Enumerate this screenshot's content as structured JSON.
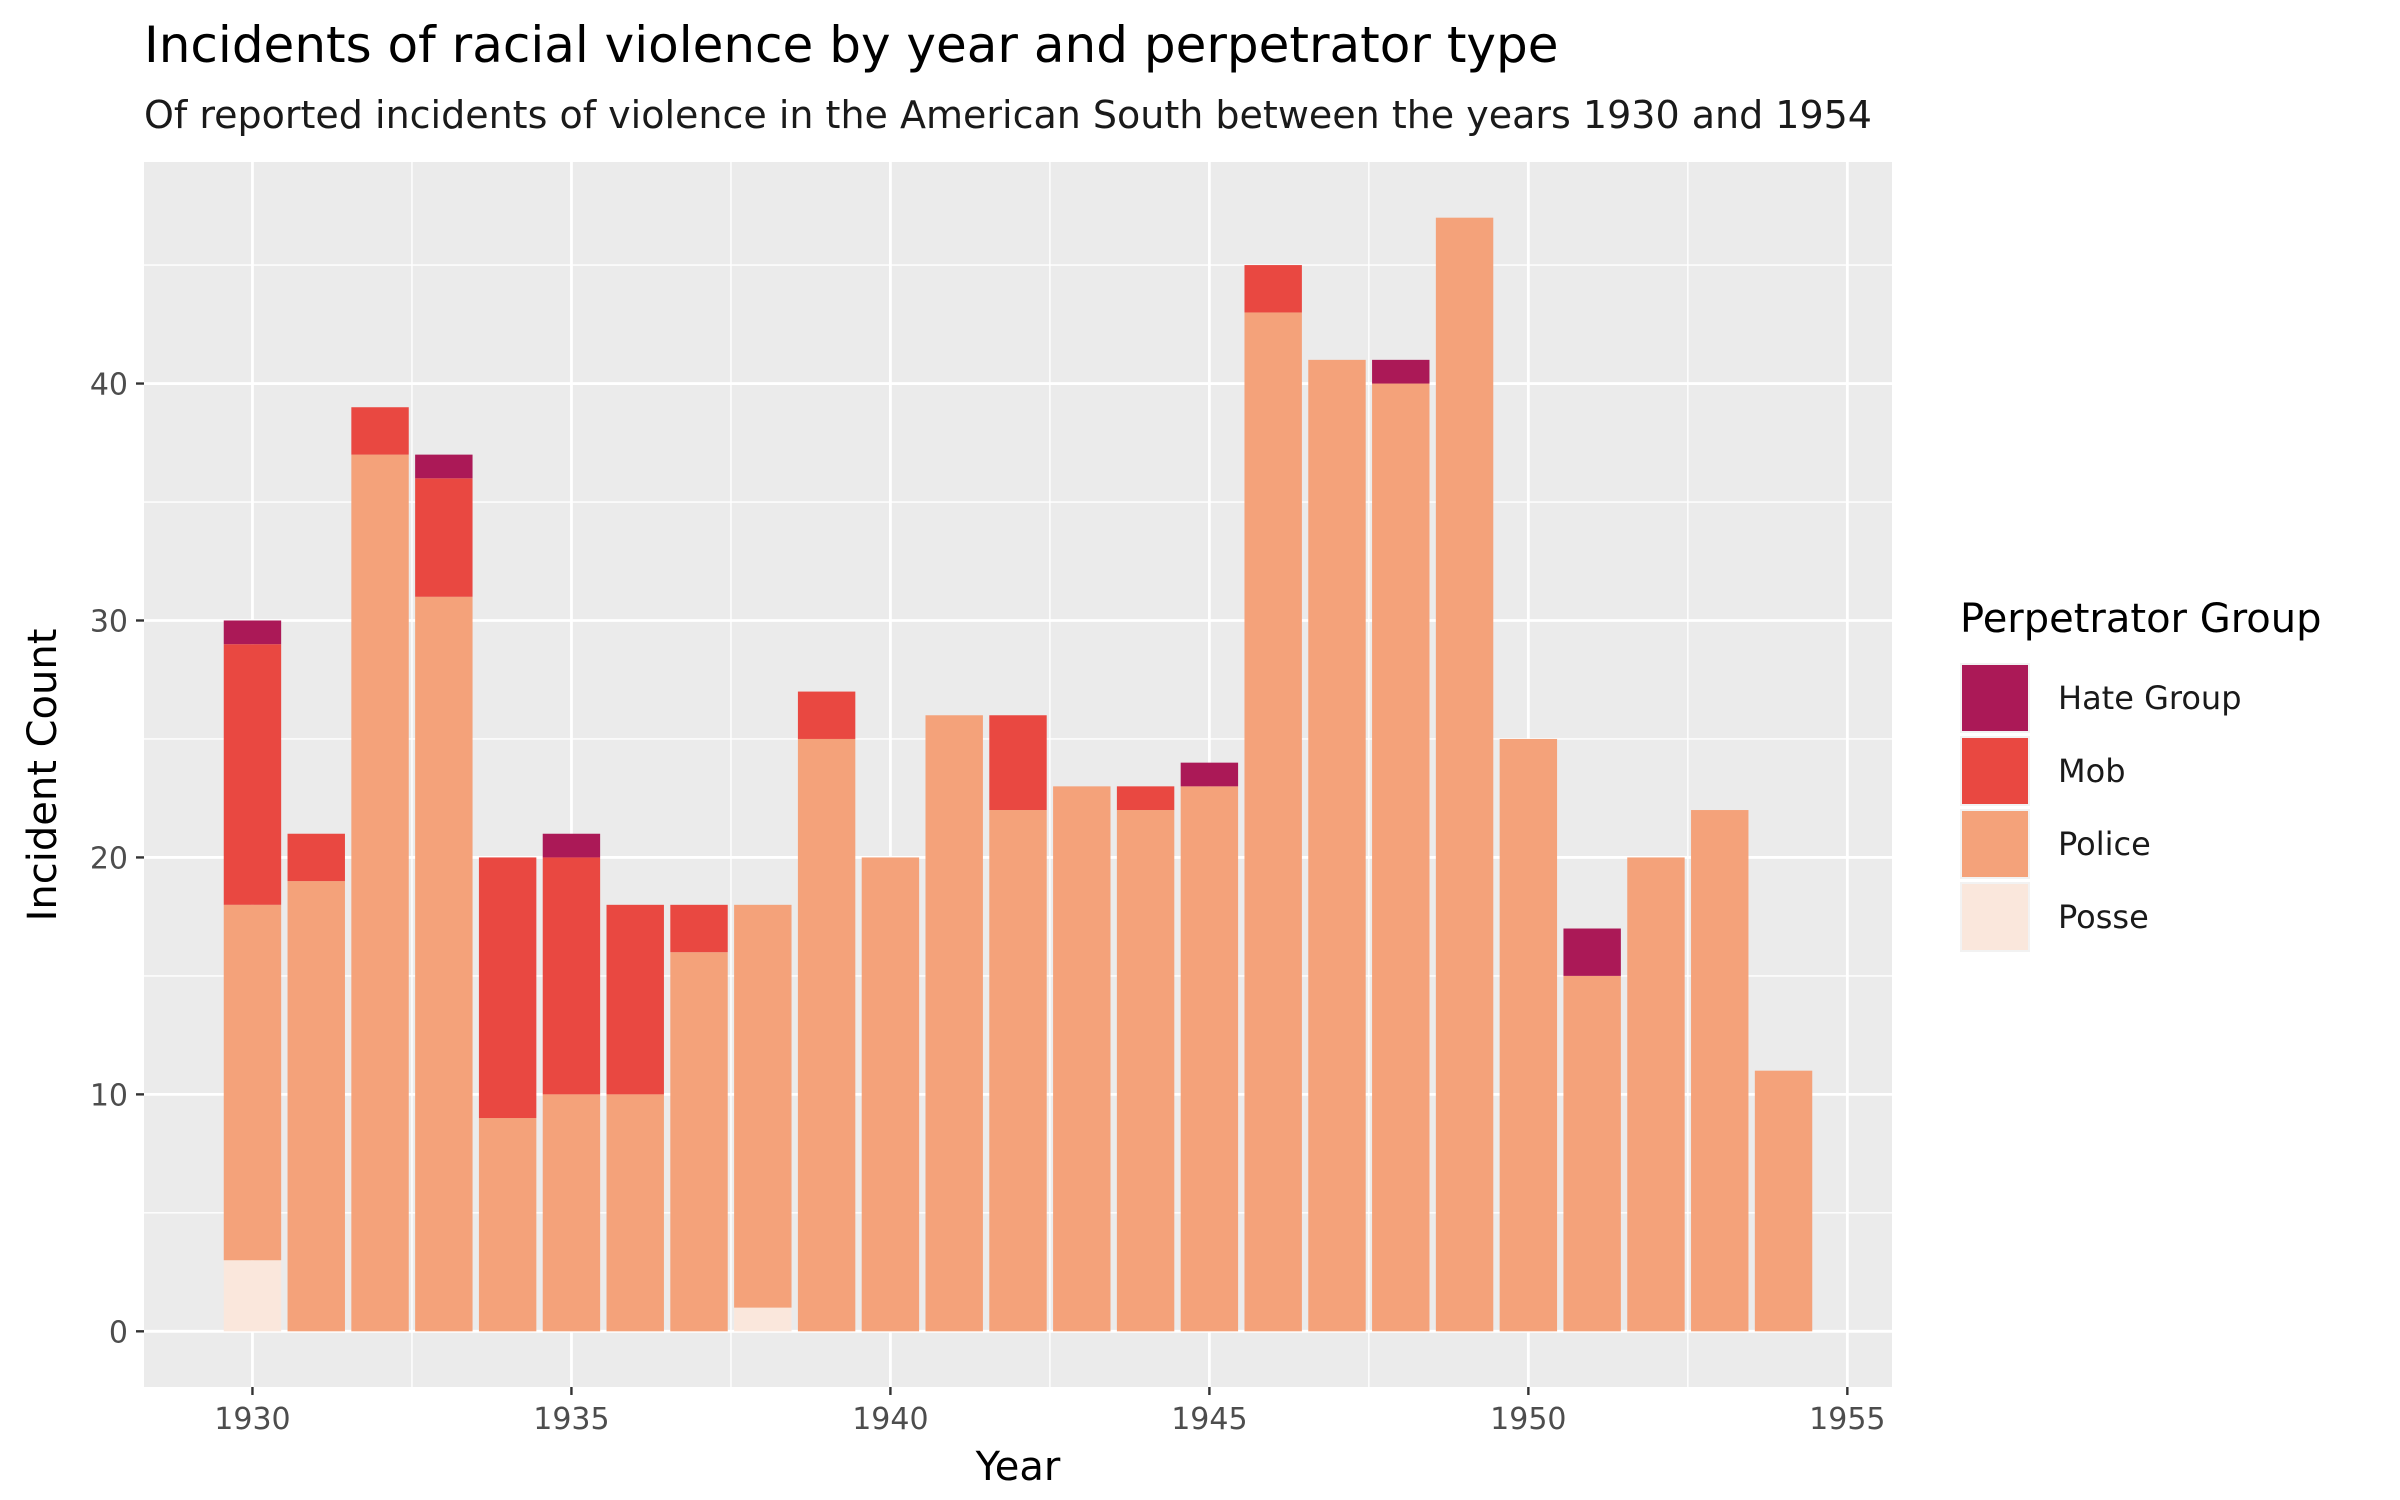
{
  "chart_data": {
    "type": "bar",
    "stacked": true,
    "title": "Incidents of racial violence by year and perpetrator type",
    "subtitle": "Of reported incidents of violence in the American South between the years 1930 and 1954",
    "xlabel": "Year",
    "ylabel": "Incident Count",
    "xlim": [
      1928.3,
      1955.7
    ],
    "ylim": [
      -2.35,
      49.35
    ],
    "x_ticks": [
      1930,
      1935,
      1940,
      1945,
      1950,
      1955
    ],
    "y_ticks": [
      0,
      10,
      20,
      30,
      40
    ],
    "legend": {
      "title": "Perpetrator Group",
      "position": "right",
      "entries": [
        "Hate Group",
        "Mob",
        "Police",
        "Posse"
      ]
    },
    "x": [
      1930,
      1931,
      1932,
      1933,
      1934,
      1935,
      1936,
      1937,
      1938,
      1939,
      1940,
      1941,
      1942,
      1943,
      1944,
      1945,
      1946,
      1947,
      1948,
      1949,
      1950,
      1951,
      1952,
      1953,
      1954
    ],
    "series": [
      {
        "name": "Posse",
        "color": "#FAE7DC",
        "values": [
          3,
          0,
          0,
          0,
          0,
          0,
          0,
          0,
          1,
          0,
          0,
          0,
          0,
          0,
          0,
          0,
          0,
          0,
          0,
          0,
          0,
          0,
          0,
          0,
          0
        ]
      },
      {
        "name": "Police",
        "color": "#F4A27A",
        "values": [
          15,
          19,
          37,
          31,
          9,
          10,
          10,
          16,
          17,
          25,
          20,
          26,
          22,
          23,
          22,
          23,
          43,
          41,
          40,
          47,
          25,
          15,
          20,
          22,
          11
        ]
      },
      {
        "name": "Mob",
        "color": "#E94841",
        "values": [
          11,
          2,
          2,
          5,
          11,
          10,
          8,
          2,
          0,
          2,
          0,
          0,
          4,
          0,
          1,
          0,
          2,
          0,
          0,
          0,
          0,
          0,
          0,
          0,
          0
        ]
      },
      {
        "name": "Hate Group",
        "color": "#AB1957",
        "values": [
          1,
          0,
          0,
          1,
          0,
          1,
          0,
          0,
          0,
          0,
          0,
          0,
          0,
          0,
          0,
          1,
          0,
          0,
          1,
          0,
          0,
          2,
          0,
          0,
          0
        ]
      }
    ]
  }
}
